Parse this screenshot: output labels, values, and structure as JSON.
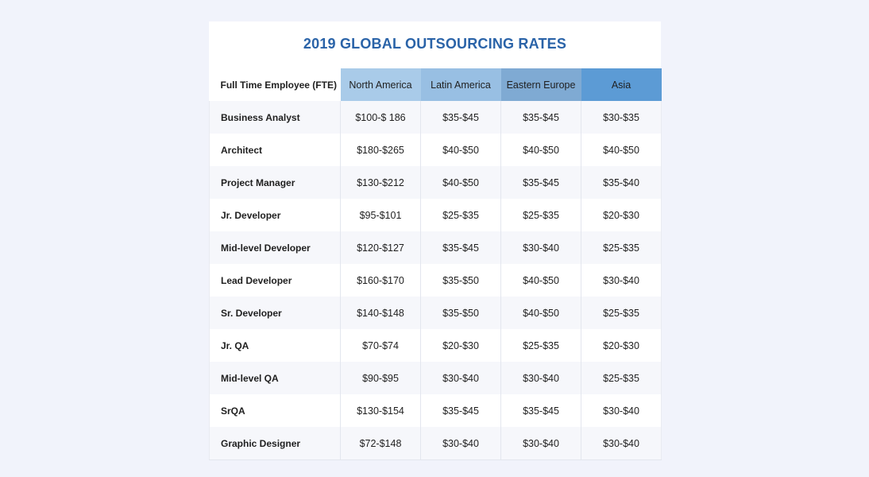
{
  "chart_data": {
    "type": "table",
    "title": "2019 GLOBAL OUTSOURCING RATES",
    "row_header_label": "Full Time Employee (FTE)",
    "columns": [
      {
        "label": "North America",
        "color": "#a9cbe9"
      },
      {
        "label": "Latin America",
        "color": "#98bfe3"
      },
      {
        "label": "Eastern Europe",
        "color": "#7faad3"
      },
      {
        "label": "Asia",
        "color": "#5c9bd5"
      }
    ],
    "rows": [
      {
        "role": "Business Analyst",
        "values": [
          "$100-$ 186",
          "$35-$45",
          "$35-$45",
          "$30-$35"
        ]
      },
      {
        "role": "Architect",
        "values": [
          "$180-$265",
          "$40-$50",
          "$40-$50",
          "$40-$50"
        ]
      },
      {
        "role": "Project Manager",
        "values": [
          "$130-$212",
          "$40-$50",
          "$35-$45",
          "$35-$40"
        ]
      },
      {
        "role": "Jr. Developer",
        "values": [
          "$95-$101",
          "$25-$35",
          "$25-$35",
          "$20-$30"
        ]
      },
      {
        "role": "Mid-level Developer",
        "values": [
          "$120-$127",
          "$35-$45",
          "$30-$40",
          "$25-$35"
        ]
      },
      {
        "role": "Lead Developer",
        "values": [
          "$160-$170",
          "$35-$50",
          "$40-$50",
          "$30-$40"
        ]
      },
      {
        "role": "Sr. Developer",
        "values": [
          "$140-$148",
          "$35-$50",
          "$40-$50",
          "$25-$35"
        ]
      },
      {
        "role": "Jr. QA",
        "values": [
          "$70-$74",
          "$20-$30",
          "$25-$35",
          "$20-$30"
        ]
      },
      {
        "role": "Mid-level QA",
        "values": [
          "$90-$95",
          "$30-$40",
          "$30-$40",
          "$25-$35"
        ]
      },
      {
        "role": "SrQA",
        "values": [
          "$130-$154",
          "$35-$45",
          "$35-$45",
          "$30-$40"
        ]
      },
      {
        "role": "Graphic Designer",
        "values": [
          "$72-$148",
          "$30-$40",
          "$30-$40",
          "$30-$40"
        ]
      }
    ]
  }
}
